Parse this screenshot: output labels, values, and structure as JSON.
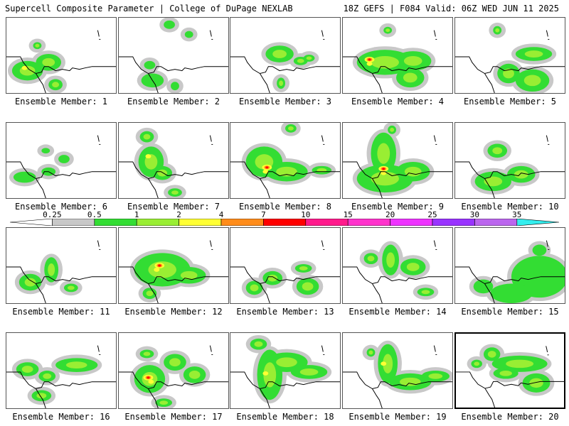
{
  "header": {
    "title": "Supercell Composite Parameter | College of DuPage NEXLAB",
    "run_info": "18Z GEFS | F084 Valid: 06Z WED JUN 11 2025"
  },
  "legend": {
    "ticks": [
      "0.25",
      "0.5",
      "1",
      "2",
      "4",
      "7",
      "10",
      "15",
      "20",
      "25",
      "30",
      "35"
    ],
    "colors": [
      "#ffffff",
      "#c8c8c8",
      "#33dd33",
      "#99ee33",
      "#ffff33",
      "#ff8c1a",
      "#ff0000",
      "#ff1a8c",
      "#ff33cc",
      "#ee33ff",
      "#9933ff",
      "#bb66ee",
      "#33eeee"
    ]
  },
  "colors": {
    "gray": "#c8c8c8",
    "green": "#33dd33",
    "lightgreen": "#99ee33",
    "yellow": "#ffff33",
    "orange": "#ff8c1a",
    "red": "#ff0000",
    "outline": "#000000"
  },
  "members": [
    {
      "label": "Ensemble Member: 1",
      "max_category": "yellow",
      "selected": false
    },
    {
      "label": "Ensemble Member: 2",
      "max_category": "green",
      "selected": false
    },
    {
      "label": "Ensemble Member: 3",
      "max_category": "lightgreen",
      "selected": false
    },
    {
      "label": "Ensemble Member: 4",
      "max_category": "red",
      "selected": false
    },
    {
      "label": "Ensemble Member: 5",
      "max_category": "lightgreen",
      "selected": false
    },
    {
      "label": "Ensemble Member: 6",
      "max_category": "green",
      "selected": false
    },
    {
      "label": "Ensemble Member: 7",
      "max_category": "yellow",
      "selected": false
    },
    {
      "label": "Ensemble Member: 8",
      "max_category": "red",
      "selected": false
    },
    {
      "label": "Ensemble Member: 9",
      "max_category": "red",
      "selected": false
    },
    {
      "label": "Ensemble Member: 10",
      "max_category": "lightgreen",
      "selected": false
    },
    {
      "label": "Ensemble Member: 11",
      "max_category": "lightgreen",
      "selected": false
    },
    {
      "label": "Ensemble Member: 12",
      "max_category": "red",
      "selected": false
    },
    {
      "label": "Ensemble Member: 13",
      "max_category": "lightgreen",
      "selected": false
    },
    {
      "label": "Ensemble Member: 14",
      "max_category": "lightgreen",
      "selected": false
    },
    {
      "label": "Ensemble Member: 15",
      "max_category": "green",
      "selected": false
    },
    {
      "label": "Ensemble Member: 16",
      "max_category": "lightgreen",
      "selected": false
    },
    {
      "label": "Ensemble Member: 17",
      "max_category": "red",
      "selected": false
    },
    {
      "label": "Ensemble Member: 18",
      "max_category": "yellow",
      "selected": false
    },
    {
      "label": "Ensemble Member: 19",
      "max_category": "yellow",
      "selected": false
    },
    {
      "label": "Ensemble Member: 20",
      "max_category": "lightgreen",
      "selected": true
    }
  ]
}
